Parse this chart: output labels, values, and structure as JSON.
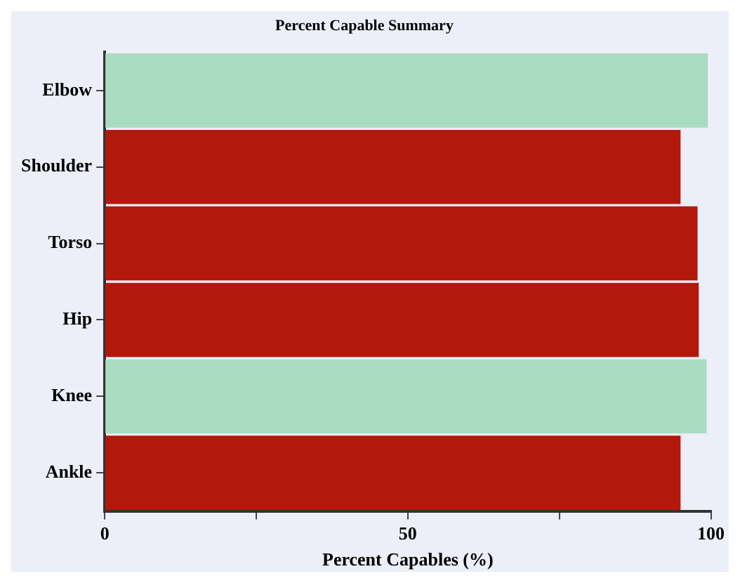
{
  "chart_data": {
    "type": "bar",
    "orientation": "horizontal",
    "title": "Percent Capable Summary",
    "xlabel": "Percent Capables (%)",
    "categories": [
      "Elbow",
      "Shoulder",
      "Torso",
      "Hip",
      "Knee",
      "Ankle"
    ],
    "values": [
      99.5,
      95,
      97.8,
      98,
      99.3,
      95
    ],
    "colors": [
      "#a9dcc0",
      "#b3180c",
      "#b3180c",
      "#b3180c",
      "#a9dcc0",
      "#b3180c"
    ],
    "xlim": [
      0,
      100
    ],
    "xticks": [
      0,
      {
        "value": 25,
        "label": null
      },
      50,
      {
        "value": 75,
        "label": null
      },
      100
    ],
    "grid": false,
    "legend": false
  }
}
